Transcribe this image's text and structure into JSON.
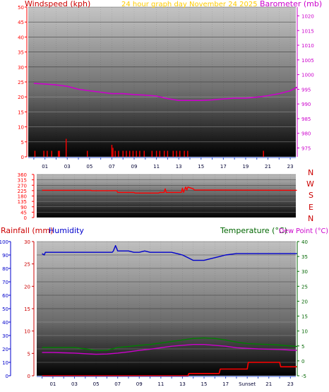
{
  "colors": {
    "wind": "#ff0000",
    "baro": "#cc00cc",
    "winddir": "#ff0000",
    "rain": "#cc0000",
    "humidity": "#0000cc",
    "temperature": "#006600",
    "dewpoint": "#cc00cc",
    "rain_line": "#ff0000",
    "temp_line": "#008000",
    "title": "#ffcc00",
    "grid_dark": "#000000",
    "grid_light": "#c8c8c8"
  },
  "header": {
    "windspeed_label": "Windspeed (kph)",
    "title": "24 hour graph day   November 24 2025",
    "barometer_label": "Barometer (mb)"
  },
  "lower_header": {
    "rainfall_label": "Rainfall (mm)",
    "humidity_label": "Humidity",
    "temperature_label": "Temperature (°C)",
    "dewpoint_label": "Dew Point (°C)"
  },
  "compass": [
    "N",
    "W",
    "S",
    "E",
    "N"
  ],
  "x_ticks_top": [
    "01",
    "03",
    "05",
    "07",
    "09",
    "11",
    "13",
    "15",
    "17",
    "19",
    "21",
    "23"
  ],
  "x_ticks_bottom": [
    "01",
    "03",
    "05",
    "07",
    "09",
    "11",
    "13",
    "15",
    "17",
    "Sunset",
    "21",
    "23"
  ],
  "chart_data": [
    {
      "type": "bar",
      "name": "wind",
      "ylabel": "Windspeed (kph)",
      "ylim": [
        0,
        50
      ],
      "yticks": [
        0,
        5,
        10,
        15,
        20,
        25,
        30,
        35,
        40,
        45,
        50
      ],
      "x_hours": [
        0.1,
        0.9,
        1.2,
        1.6,
        2.2,
        2.3,
        2.9,
        4.8,
        7.0,
        7.1,
        7.3,
        7.6,
        8.0,
        8.3,
        8.6,
        8.9,
        9.2,
        9.5,
        9.9,
        10.6,
        11.0,
        11.3,
        11.7,
        12.0,
        12.5,
        12.8,
        13.1,
        13.5,
        13.8,
        20.6
      ],
      "values": [
        2,
        2,
        2,
        2,
        2,
        2,
        6,
        2,
        4,
        3,
        2,
        2,
        2,
        2,
        2,
        2,
        2,
        2,
        2,
        2,
        2,
        2,
        2,
        2,
        2,
        2,
        2,
        2,
        2,
        2
      ]
    },
    {
      "type": "line",
      "name": "barometer",
      "ylabel": "Barometer (mb)",
      "ylim": [
        972,
        1023
      ],
      "yticks": [
        975,
        980,
        985,
        990,
        995,
        1000,
        1005,
        1010,
        1015,
        1020
      ],
      "x": [
        0,
        1,
        2,
        3,
        4,
        5,
        6,
        7,
        8,
        9,
        10,
        11,
        12,
        13,
        14,
        15,
        16,
        17,
        18,
        19,
        20,
        21,
        22,
        23,
        23.6
      ],
      "values": [
        997.0,
        996.8,
        996.5,
        996.0,
        995.0,
        994.5,
        994.0,
        993.5,
        993.5,
        993.2,
        993.0,
        992.7,
        991.8,
        991.2,
        991.2,
        991.2,
        991.4,
        991.7,
        992.0,
        992.0,
        992.3,
        992.8,
        993.5,
        994.5,
        995.7
      ]
    },
    {
      "type": "line",
      "name": "wind direction",
      "ylim": [
        0,
        360
      ],
      "yticks": [
        0,
        45,
        90,
        135,
        180,
        225,
        270,
        315,
        360
      ],
      "x": [
        0,
        4.5,
        4.6,
        6.9,
        7.0,
        8.5,
        8.6,
        10.8,
        10.9,
        11.3,
        11.4,
        11.5,
        11.6,
        12.9,
        13.0,
        13.1,
        13.3,
        13.4,
        13.5,
        14.0,
        14.1,
        23.6
      ],
      "values": [
        228,
        228,
        225,
        225,
        210,
        210,
        205,
        205,
        210,
        210,
        240,
        210,
        210,
        210,
        245,
        210,
        255,
        230,
        255,
        240,
        230,
        228
      ]
    },
    {
      "type": "line",
      "name": "humidity",
      "ylabel": "Humidity",
      "ylim": [
        0,
        100
      ],
      "yticks": [
        0,
        10,
        20,
        30,
        40,
        50,
        60,
        70,
        80,
        90,
        100
      ],
      "x": [
        0,
        0.2,
        0.3,
        5.0,
        6.5,
        6.6,
        6.8,
        7.0,
        7.2,
        8.0,
        8.5,
        9.0,
        9.5,
        10.0,
        11.0,
        12.0,
        12.5,
        13.0,
        13.5,
        14.0,
        14.5,
        15.0,
        15.5,
        16.0,
        16.5,
        17.0,
        18.0,
        20.0,
        23.6
      ],
      "values": [
        91,
        90,
        92,
        92,
        92,
        93,
        97,
        93,
        93,
        93,
        92,
        92,
        93,
        92,
        92,
        92,
        91,
        90,
        88,
        86,
        86,
        86,
        87,
        88,
        89,
        90,
        91,
        91,
        91
      ]
    },
    {
      "type": "line",
      "name": "rainfall",
      "ylabel": "Rainfall (mm)",
      "ylim": [
        0,
        30
      ],
      "yticks": [
        0,
        5,
        10,
        15,
        20,
        25,
        30
      ],
      "x": [
        0,
        13.5,
        13.6,
        16.4,
        16.5,
        19.0,
        19.1,
        22.0,
        22.1,
        23.6
      ],
      "values": [
        0,
        0,
        0.5,
        0.5,
        1.5,
        1.5,
        3,
        3,
        2,
        2
      ]
    },
    {
      "type": "line",
      "name": "temperature",
      "ylabel": "Temperature (°C)",
      "ylim": [
        -5,
        40
      ],
      "yticks": [
        -5,
        0,
        5,
        10,
        15,
        20,
        25,
        30,
        35,
        40
      ],
      "x": [
        0,
        1,
        2,
        3,
        4,
        5,
        6,
        7,
        8,
        9,
        10,
        11,
        12,
        13,
        14,
        15,
        16,
        17,
        18,
        19,
        20,
        21,
        22,
        23,
        23.6
      ],
      "values": [
        4.5,
        4.5,
        4.5,
        4.5,
        4.0,
        3.5,
        3.5,
        4.5,
        4.8,
        5.2,
        5.5,
        6.0,
        6.5,
        7.0,
        7.5,
        7.7,
        7.5,
        7.0,
        6.3,
        5.8,
        5.6,
        5.5,
        5.3,
        5.0,
        4.8
      ]
    },
    {
      "type": "line",
      "name": "dew point",
      "ylabel": "Dew Point (°C)",
      "ylim": [
        -5,
        40
      ],
      "yticks": [
        -5,
        0,
        5,
        10,
        15,
        20,
        25,
        30,
        35,
        40
      ],
      "x": [
        0,
        1,
        2,
        3,
        4,
        5,
        6,
        7,
        8,
        9,
        10,
        11,
        12,
        13,
        14,
        15,
        16,
        17,
        18,
        19,
        20,
        21,
        22,
        23,
        23.6
      ],
      "values": [
        2.8,
        2.8,
        2.7,
        2.6,
        2.4,
        2.2,
        2.3,
        2.6,
        3.0,
        3.5,
        3.9,
        4.4,
        4.9,
        5.2,
        5.5,
        5.5,
        5.2,
        4.9,
        4.4,
        4.2,
        4.0,
        3.9,
        3.8,
        3.6,
        3.5
      ]
    }
  ]
}
